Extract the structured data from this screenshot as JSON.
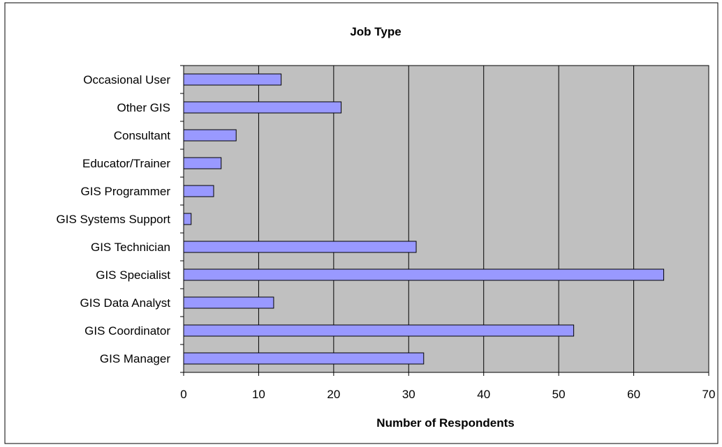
{
  "chart_data": {
    "type": "bar",
    "orientation": "horizontal",
    "title": "Job Type",
    "xlabel": "Number of Respondents",
    "ylabel": "",
    "categories": [
      "GIS Manager",
      "GIS Coordinator",
      "GIS Data Analyst",
      "GIS Specialist",
      "GIS Technician",
      "GIS Systems Support",
      "GIS Programmer",
      "Educator/Trainer",
      "Consultant",
      "Other GIS",
      "Occasional User"
    ],
    "values": [
      32,
      52,
      12,
      64,
      31,
      1,
      4,
      5,
      7,
      21,
      13
    ],
    "xlim": [
      0,
      70
    ],
    "xticks": [
      "0",
      "10",
      "20",
      "30",
      "40",
      "50",
      "60",
      "70"
    ],
    "grid": "vertical",
    "legend": "none"
  },
  "colors": {
    "plot_background": "#c0c0c0",
    "bar_fill": "#9999ff",
    "bar_stroke": "#000000",
    "gridline": "#000000",
    "chart_border": "#000000",
    "page_background": "#ffffff"
  }
}
